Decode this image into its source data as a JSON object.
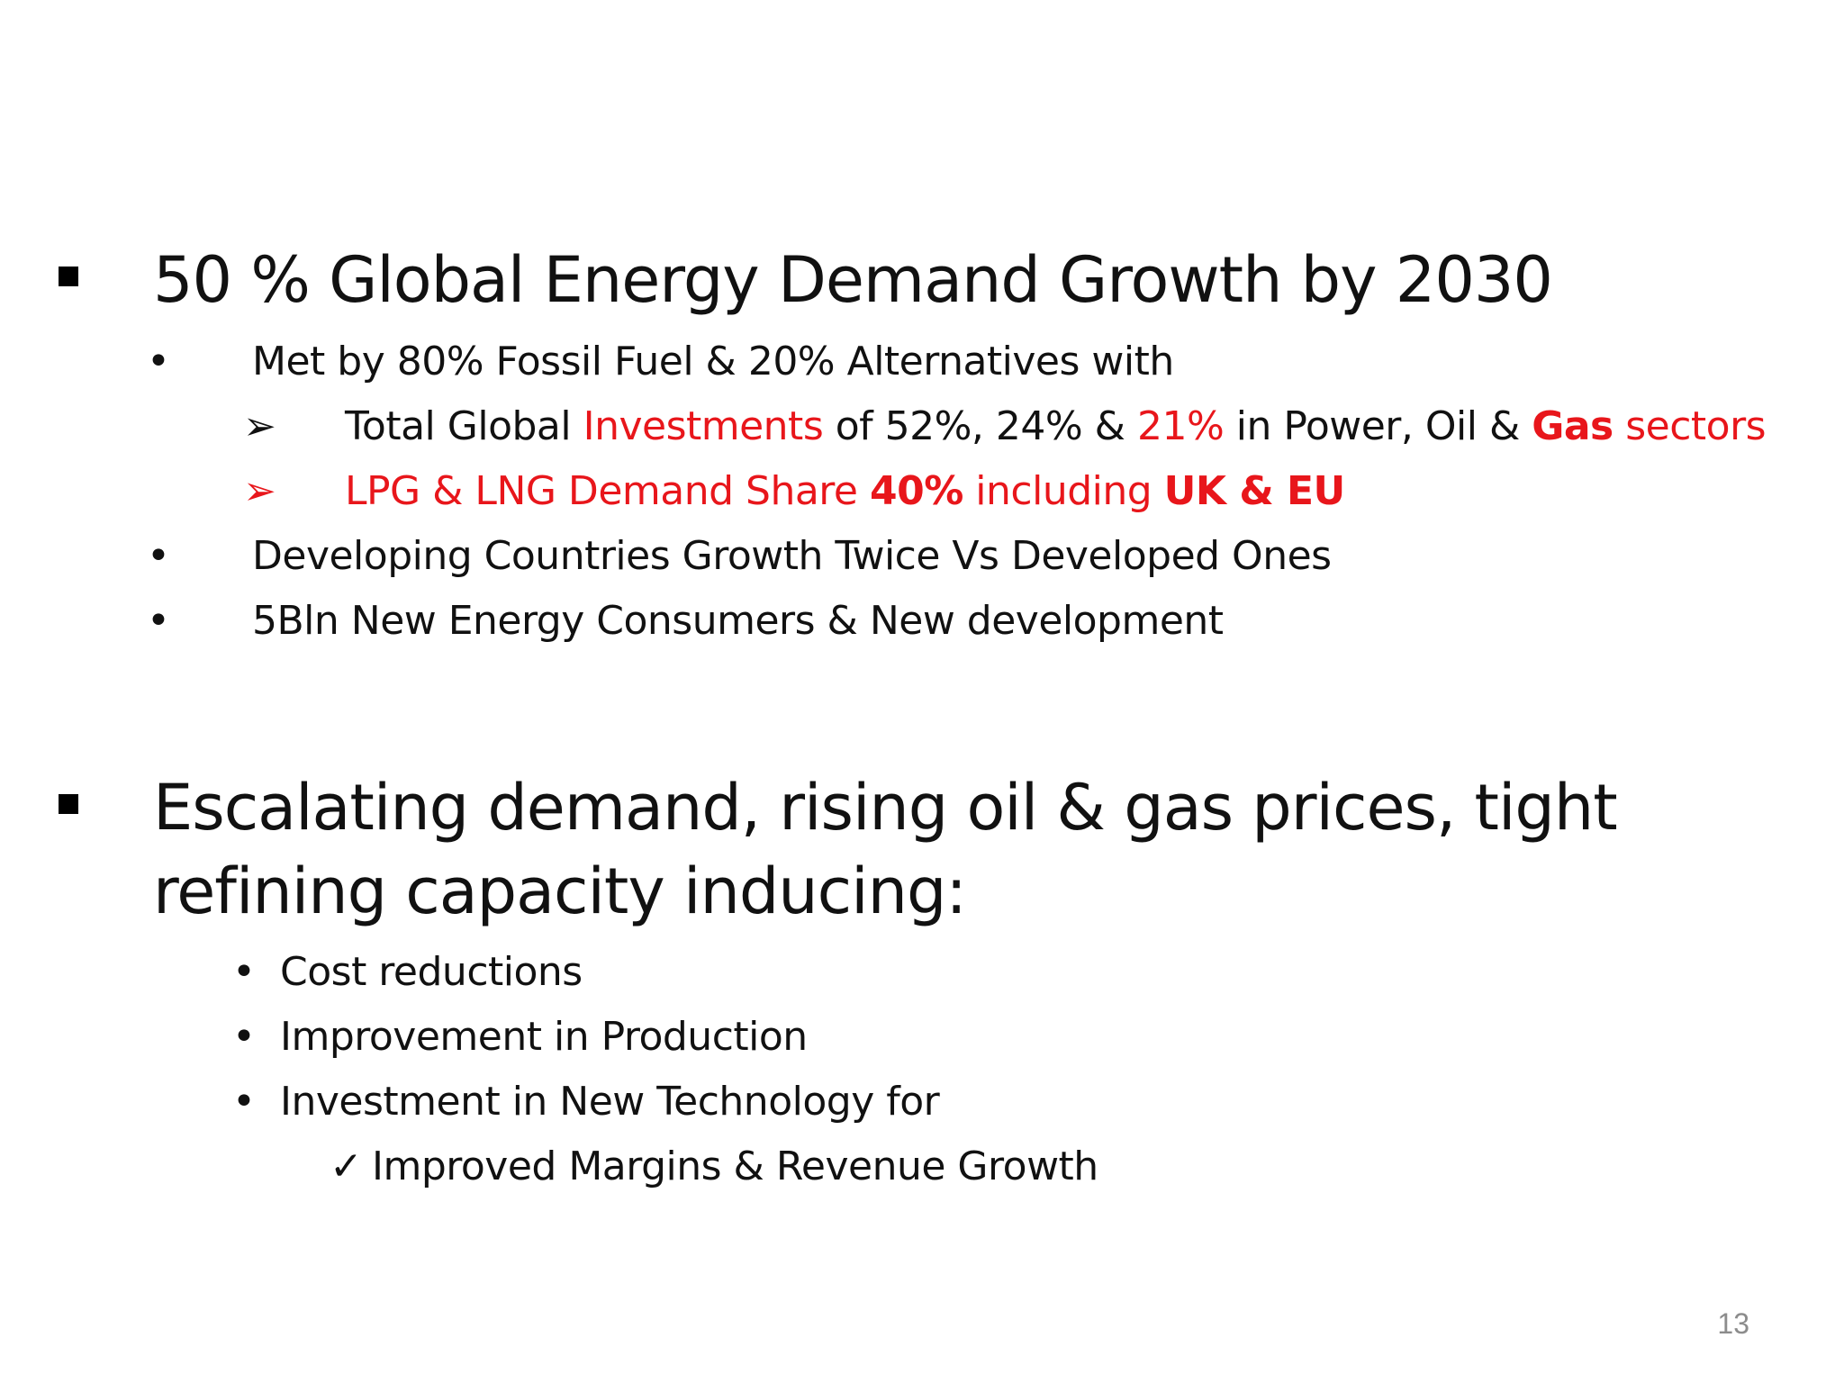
{
  "sections": [
    {
      "heading": "50 % Global Energy Demand Growth by 2030",
      "items": [
        {
          "text": "Met by 80% Fossil Fuel & 20% Alternatives with"
        },
        {
          "text_parts": [
            "Total Global ",
            "Investments",
            " of 52%, 24% & ",
            "21%",
            " in Power, Oil & ",
            "Gas",
            " sectors"
          ]
        },
        {
          "text_parts": [
            "LPG & LNG Demand Share ",
            "40%",
            " including ",
            "UK & EU"
          ]
        },
        {
          "text": "Developing Countries Growth Twice Vs Developed Ones"
        },
        {
          "text": "5Bln New Energy Consumers & New development"
        }
      ]
    },
    {
      "heading_line1": "Escalating demand, rising oil & gas prices, tight",
      "heading_line2": "refining capacity inducing:",
      "items": [
        {
          "text": "Cost reductions"
        },
        {
          "text": "Improvement in Production"
        },
        {
          "text": "Investment in New Technology for"
        },
        {
          "text": "Improved Margins & Revenue Growth"
        }
      ]
    }
  ],
  "glyphs": {
    "round_bullet": "•",
    "arrow_bullet": "➢",
    "check_bullet": "✓"
  },
  "colors": {
    "accent_red": "#e8161b",
    "text": "#111111",
    "page_number": "#8c8c8c"
  },
  "page_number": "13"
}
